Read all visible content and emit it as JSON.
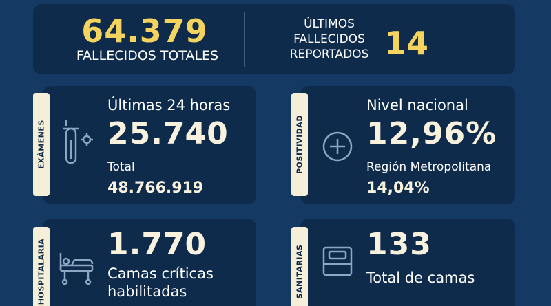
{
  "top": {
    "fallecidos_totales_value": "64.379",
    "fallecidos_totales_label": "FALLECIDOS TOTALES",
    "ultimos_label_1": "ÚLTIMOS",
    "ultimos_label_2": "FALLECIDOS",
    "ultimos_label_3": "REPORTADOS",
    "ultimos_value": "14"
  },
  "examenes": {
    "tab": "EXÁMENES",
    "label": "Últimas 24 horas",
    "value": "25.740",
    "total_label": "Total",
    "total_value": "48.766.919",
    "icon": "test-tube-icon"
  },
  "positividad": {
    "tab": "POSITIVIDAD",
    "label": "Nivel nacional",
    "value": "12,96%",
    "region_label": "Región Metropolitana",
    "region_value": "14,04%",
    "icon": "plus-circle-icon"
  },
  "hospitalaria": {
    "tab": "HOSPITALARIA",
    "value": "1.770",
    "label_1": "Camas críticas",
    "label_2": "habilitadas",
    "icon": "hospital-bed-icon"
  },
  "sanitarias": {
    "tab": "SANITARIAS",
    "value": "133",
    "label": "Total de camas",
    "icon": "bed-icon"
  },
  "colors": {
    "background": "#143a63",
    "card": "#0e2b4c",
    "accent_yellow": "#f4d35e",
    "tab": "#f5efd9"
  }
}
